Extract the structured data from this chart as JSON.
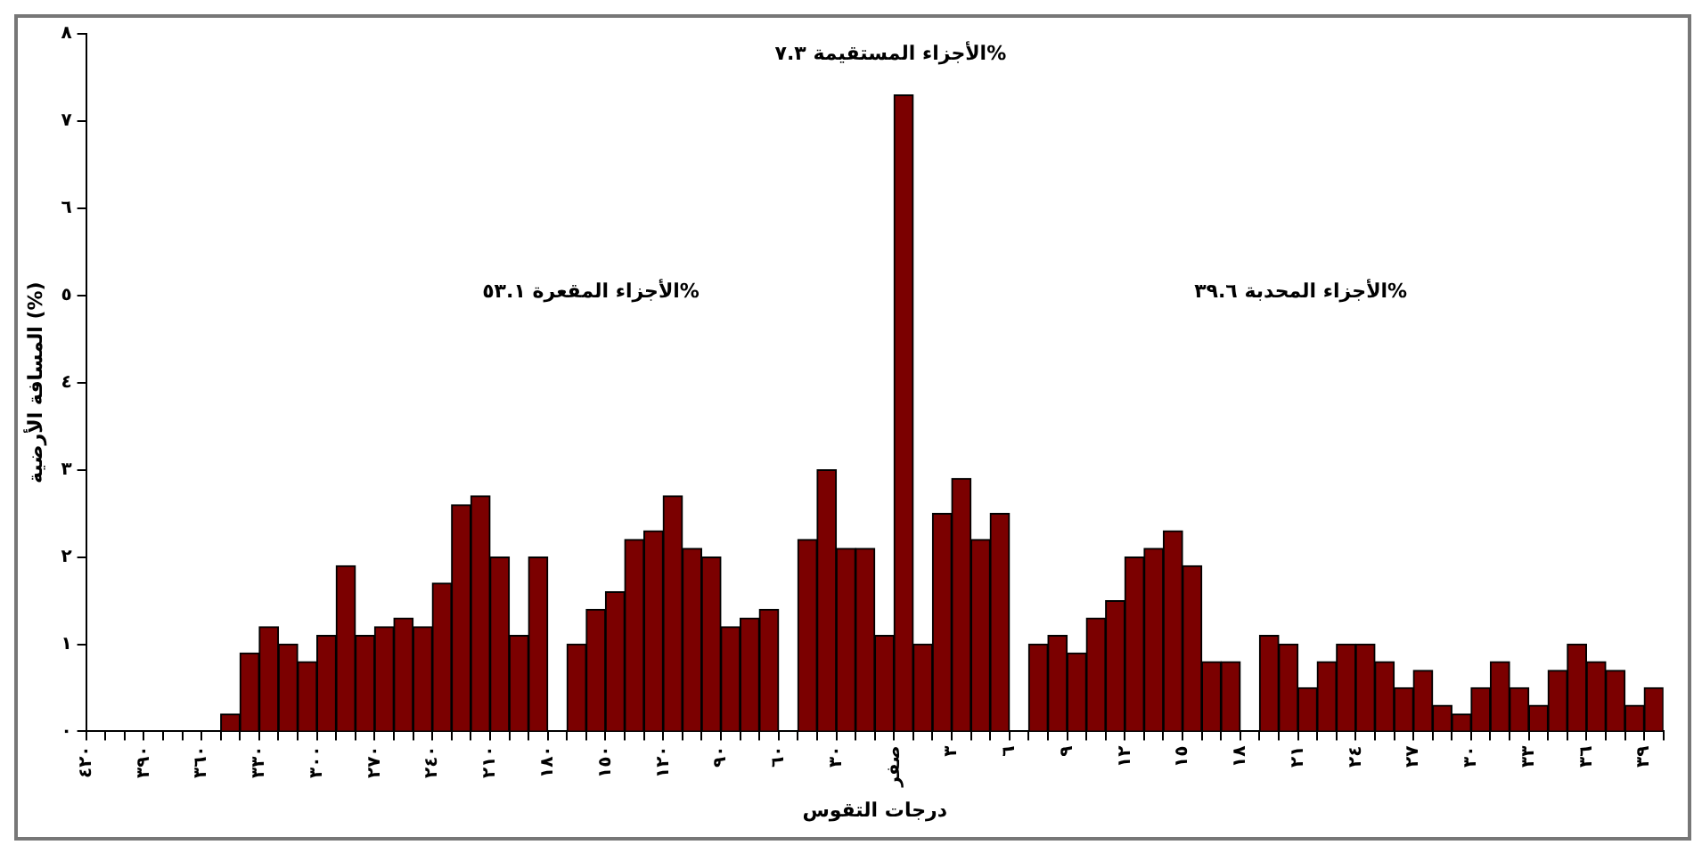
{
  "chart_data": {
    "type": "bar",
    "categories": [
      "٤٢٠",
      null,
      null,
      "٣٩٠",
      null,
      null,
      "٣٦٠",
      null,
      null,
      "٣٣٠",
      null,
      null,
      "٣٠٠",
      null,
      null,
      "٢٧٠",
      null,
      null,
      "٢٤٠",
      null,
      null,
      "٢١٠",
      null,
      null,
      "١٨٠",
      null,
      null,
      "١٥٠",
      null,
      null,
      "١٢٠",
      null,
      null,
      "٩٠",
      null,
      null,
      "٦٠",
      null,
      null,
      "٣٠",
      null,
      null,
      "صفر",
      null,
      null,
      "٣",
      null,
      null,
      "٦",
      null,
      null,
      "٩",
      null,
      null,
      "١٢",
      null,
      null,
      "١٥",
      null,
      null,
      "١٨",
      null,
      null,
      "٢١",
      null,
      null,
      "٢٤",
      null,
      null,
      "٢٧",
      null,
      null,
      "٣٠",
      null,
      null,
      "٣٣",
      null,
      null,
      "٣٦",
      null,
      null,
      "٣٩"
    ],
    "values": [
      0,
      0,
      0,
      0,
      0,
      0,
      0,
      0.2,
      0.9,
      1.2,
      1.0,
      0.8,
      1.1,
      1.9,
      1.1,
      1.2,
      1.3,
      1.2,
      1.7,
      2.6,
      2.7,
      2.0,
      1.1,
      2.0,
      0,
      1.0,
      1.4,
      1.6,
      2.2,
      2.3,
      2.7,
      2.1,
      2.0,
      1.2,
      1.3,
      1.4,
      0,
      2.2,
      3.0,
      2.1,
      2.1,
      1.1,
      7.3,
      1.0,
      2.5,
      2.9,
      2.2,
      2.5,
      0,
      1.0,
      1.1,
      0.9,
      1.3,
      1.5,
      2.0,
      2.1,
      2.3,
      1.9,
      0.8,
      0.8,
      0,
      1.1,
      1.0,
      0.5,
      0.8,
      1.0,
      1.0,
      0.8,
      0.5,
      0.7,
      0.3,
      0.2,
      0.5,
      0.8,
      0.5,
      0.3,
      0.7,
      1.0,
      0.8,
      0.7,
      0.3,
      0.5
    ],
    "color": "#7b0000",
    "xlabel": "درجات التقوس",
    "ylabel": "المسافة الأرضية (%)",
    "ylim": [
      0,
      8
    ],
    "yticks": [
      {
        "value": 0,
        "label": "٠"
      },
      {
        "value": 1,
        "label": "١"
      },
      {
        "value": 2,
        "label": "٢"
      },
      {
        "value": 3,
        "label": "٣"
      },
      {
        "value": 4,
        "label": "٤"
      },
      {
        "value": 5,
        "label": "٥"
      },
      {
        "value": 6,
        "label": "٦"
      },
      {
        "value": 7,
        "label": "٧"
      },
      {
        "value": 8,
        "label": "٨"
      }
    ],
    "annotations": [
      "الأجزاء المقعرة ٥٣.١%",
      "الأجزاء المستقيمة ٧.٣%",
      "الأجزاء المحدبة ٣٩.٦%"
    ],
    "legend": false
  }
}
